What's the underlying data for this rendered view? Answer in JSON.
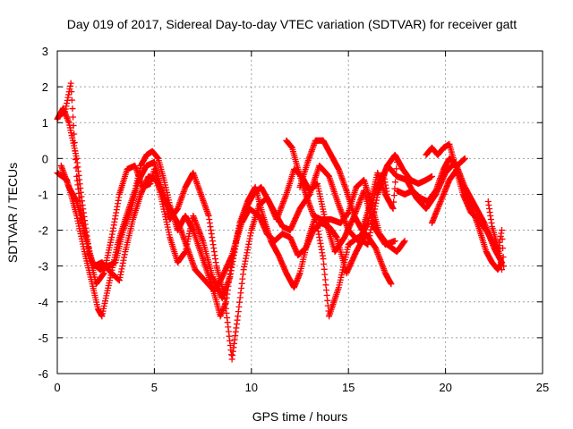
{
  "chart_data": {
    "type": "scatter",
    "title": "Day 019 of 2017, Sidereal Day-to-day VTEC variation (SDTVAR) for receiver gatt",
    "xlabel": "GPS time / hours",
    "ylabel": "SDTVAR / TECUs",
    "xlim": [
      0,
      25
    ],
    "ylim": [
      -6,
      3
    ],
    "xticks": [
      0,
      5,
      10,
      15,
      20,
      25
    ],
    "yticks": [
      -6,
      -5,
      -4,
      -3,
      -2,
      -1,
      0,
      1,
      2,
      3
    ],
    "grid": true,
    "marker": "+",
    "series_color": "#ff0000",
    "tracks": [
      [
        [
          0.0,
          1.1
        ],
        [
          0.3,
          1.4
        ],
        [
          0.6,
          1.0
        ],
        [
          1.0,
          0.0
        ],
        [
          1.3,
          -1.3
        ],
        [
          1.7,
          -2.8
        ],
        [
          2.0,
          -3.5
        ],
        [
          2.4,
          -3.2
        ],
        [
          2.8,
          -2.2
        ],
        [
          3.2,
          -1.0
        ],
        [
          3.6,
          -0.3
        ],
        [
          4.0,
          -0.2
        ],
        [
          4.4,
          -0.8
        ],
        [
          4.8,
          -0.7
        ],
        [
          5.0,
          -0.3
        ],
        [
          5.4,
          -1.2
        ],
        [
          5.8,
          -2.2
        ],
        [
          6.2,
          -2.9
        ],
        [
          6.6,
          -2.6
        ],
        [
          7.0,
          -1.6
        ],
        [
          7.5,
          -2.3
        ],
        [
          8.0,
          -3.3
        ],
        [
          8.5,
          -3.9
        ],
        [
          8.9,
          -3.3
        ],
        [
          9.3,
          -2.1
        ],
        [
          9.7,
          -1.4
        ],
        [
          10.1,
          -1.0
        ],
        [
          10.5,
          -0.8
        ],
        [
          10.9,
          -1.2
        ],
        [
          11.3,
          -1.7
        ],
        [
          11.8,
          -1.0
        ],
        [
          12.2,
          -0.3
        ],
        [
          12.6,
          -0.5
        ],
        [
          13.0,
          -0.9
        ],
        [
          13.4,
          -0.7
        ],
        [
          13.8,
          -1.7
        ],
        [
          14.3,
          -2.6
        ],
        [
          14.8,
          -2.2
        ],
        [
          15.3,
          -1.6
        ],
        [
          15.8,
          -0.9
        ],
        [
          16.3,
          -1.9
        ],
        [
          16.9,
          -2.4
        ],
        [
          17.4,
          -2.3
        ]
      ],
      [
        [
          0.0,
          -0.4
        ],
        [
          0.5,
          -0.6
        ],
        [
          1.0,
          -1.6
        ],
        [
          1.4,
          -2.6
        ],
        [
          1.8,
          -3.5
        ],
        [
          2.1,
          -4.2
        ],
        [
          2.3,
          -4.4
        ],
        [
          2.7,
          -3.4
        ],
        [
          3.1,
          -2.4
        ],
        [
          3.5,
          -1.7
        ],
        [
          4.0,
          -0.9
        ],
        [
          4.3,
          -0.2
        ],
        [
          4.6,
          0.1
        ],
        [
          4.9,
          0.2
        ],
        [
          5.2,
          0.0
        ],
        [
          5.5,
          -0.6
        ],
        [
          5.8,
          -1.3
        ],
        [
          6.2,
          -2.0
        ],
        [
          6.6,
          -1.6
        ],
        [
          7.0,
          -2.0
        ],
        [
          7.5,
          -2.8
        ],
        [
          8.0,
          -3.6
        ],
        [
          8.4,
          -4.4
        ],
        [
          8.7,
          -4.0
        ],
        [
          9.0,
          -2.8
        ],
        [
          9.4,
          -1.8
        ],
        [
          9.8,
          -1.2
        ],
        [
          10.2,
          -0.8
        ],
        [
          10.6,
          -1.6
        ],
        [
          11.0,
          -2.3
        ],
        [
          11.4,
          -2.7
        ],
        [
          11.8,
          -3.2
        ],
        [
          12.2,
          -3.6
        ],
        [
          12.5,
          -3.2
        ],
        [
          12.9,
          -2.3
        ],
        [
          13.3,
          -1.6
        ],
        [
          13.7,
          -2.8
        ],
        [
          14.0,
          -4.4
        ],
        [
          14.5,
          -3.6
        ],
        [
          15.0,
          -2.4
        ],
        [
          15.5,
          -2.2
        ],
        [
          16.0,
          -2.4
        ],
        [
          16.5,
          -1.0
        ],
        [
          17.0,
          -0.2
        ],
        [
          17.5,
          -0.5
        ],
        [
          18.0,
          -0.6
        ],
        [
          18.5,
          -1.1
        ],
        [
          19.0,
          -1.4
        ],
        [
          19.5,
          -1.0
        ],
        [
          20.0,
          -0.4
        ],
        [
          20.5,
          -0.1
        ],
        [
          21.0,
          -0.8
        ],
        [
          21.5,
          -1.3
        ],
        [
          22.0,
          -1.8
        ],
        [
          22.5,
          -2.5
        ],
        [
          22.9,
          -2.9
        ]
      ],
      [
        [
          0.1,
          1.2
        ],
        [
          0.4,
          1.3
        ],
        [
          0.7,
          2.1
        ],
        [
          1.0,
          -0.5
        ],
        [
          1.3,
          -1.8
        ],
        [
          1.6,
          -2.6
        ],
        [
          1.9,
          -3.0
        ],
        [
          2.3,
          -2.9
        ],
        [
          2.8,
          -3.2
        ],
        [
          3.2,
          -3.4
        ],
        [
          3.5,
          -2.6
        ],
        [
          3.9,
          -1.7
        ],
        [
          4.3,
          -1.0
        ],
        [
          4.7,
          -0.5
        ],
        [
          5.1,
          -0.6
        ],
        [
          5.5,
          -1.1
        ],
        [
          5.9,
          -1.5
        ],
        [
          6.3,
          -1.9
        ],
        [
          6.7,
          -2.5
        ],
        [
          7.1,
          -3.1
        ],
        [
          7.6,
          -3.4
        ],
        [
          8.1,
          -3.7
        ],
        [
          8.5,
          -3.3
        ],
        [
          9.0,
          -2.7
        ],
        [
          9.5,
          -1.8
        ],
        [
          9.9,
          -1.4
        ],
        [
          10.4,
          -1.6
        ],
        [
          10.8,
          -2.1
        ],
        [
          11.2,
          -2.3
        ],
        [
          11.6,
          -2.1
        ],
        [
          12.0,
          -2.2
        ],
        [
          12.4,
          -2.7
        ],
        [
          12.8,
          -2.5
        ],
        [
          13.2,
          -2.0
        ],
        [
          13.6,
          -1.8
        ],
        [
          14.0,
          -1.9
        ],
        [
          14.4,
          -2.2
        ],
        [
          14.9,
          -3.2
        ],
        [
          15.4,
          -2.6
        ],
        [
          15.9,
          -2.1
        ],
        [
          16.4,
          -2.5
        ],
        [
          16.9,
          -3.2
        ],
        [
          17.2,
          -3.5
        ]
      ],
      [
        [
          0.2,
          -0.2
        ],
        [
          0.6,
          -0.8
        ],
        [
          1.0,
          -1.2
        ],
        [
          1.4,
          -2.0
        ],
        [
          1.8,
          -2.9
        ],
        [
          2.2,
          -3.1
        ],
        [
          2.6,
          -3.0
        ],
        [
          3.0,
          -2.9
        ],
        [
          3.4,
          -2.0
        ],
        [
          3.8,
          -1.4
        ],
        [
          4.2,
          -0.6
        ],
        [
          4.6,
          -0.2
        ],
        [
          5.0,
          -0.1
        ],
        [
          5.4,
          -0.9
        ],
        [
          5.8,
          -1.7
        ],
        [
          6.2,
          -1.4
        ],
        [
          6.6,
          -0.8
        ],
        [
          7.0,
          -0.4
        ],
        [
          7.4,
          -1.0
        ],
        [
          7.8,
          -1.6
        ],
        [
          8.2,
          -3.0
        ],
        [
          8.6,
          -3.8
        ],
        [
          9.0,
          -5.6
        ],
        [
          9.3,
          -4.4
        ],
        [
          9.6,
          -3.1
        ],
        [
          10.0,
          -2.0
        ],
        [
          10.4,
          -1.3
        ],
        [
          10.8,
          -1.1
        ],
        [
          11.2,
          -1.5
        ],
        [
          11.6,
          -1.9
        ],
        [
          12.0,
          -2.0
        ],
        [
          12.5,
          -1.4
        ],
        [
          13.0,
          -1.0
        ],
        [
          13.5,
          -0.2
        ],
        [
          14.0,
          -0.5
        ],
        [
          14.5,
          -1.3
        ],
        [
          15.0,
          -2.0
        ],
        [
          15.5,
          -2.3
        ],
        [
          16.0,
          -1.8
        ],
        [
          16.4,
          -0.9
        ],
        [
          16.8,
          -0.4
        ],
        [
          17.0,
          -1.0
        ]
      ],
      [
        [
          11.8,
          0.5
        ],
        [
          12.1,
          0.3
        ],
        [
          12.4,
          -0.3
        ],
        [
          12.8,
          -1.0
        ],
        [
          13.2,
          -1.6
        ],
        [
          13.6,
          -1.7
        ],
        [
          14.1,
          -1.7
        ],
        [
          14.6,
          -1.8
        ],
        [
          15.0,
          -1.5
        ],
        [
          15.4,
          -0.8
        ],
        [
          15.8,
          -0.6
        ],
        [
          16.2,
          -1.3
        ],
        [
          16.6,
          -2.1
        ],
        [
          17.0,
          -2.4
        ],
        [
          17.5,
          -2.6
        ],
        [
          17.9,
          -2.3
        ]
      ],
      [
        [
          12.5,
          -0.8
        ],
        [
          12.9,
          -0.1
        ],
        [
          13.3,
          0.5
        ],
        [
          13.7,
          0.5
        ],
        [
          14.1,
          0.1
        ],
        [
          14.5,
          -0.3
        ],
        [
          14.9,
          -0.9
        ],
        [
          15.3,
          -1.6
        ],
        [
          15.7,
          -2.0
        ],
        [
          16.1,
          -1.3
        ],
        [
          16.5,
          -0.4
        ],
        [
          16.9,
          -1.0
        ],
        [
          17.3,
          -1.4
        ],
        [
          17.5,
          -0.1
        ]
      ],
      [
        [
          16.7,
          -0.6
        ],
        [
          17.0,
          -0.2
        ],
        [
          17.4,
          0.1
        ],
        [
          17.8,
          -0.3
        ],
        [
          18.2,
          -0.6
        ],
        [
          18.6,
          -0.7
        ],
        [
          19.0,
          -0.6
        ],
        [
          19.3,
          -0.5
        ]
      ],
      [
        [
          17.5,
          -0.9
        ],
        [
          17.9,
          -1.0
        ],
        [
          18.3,
          -0.9
        ],
        [
          18.7,
          -1.1
        ],
        [
          19.1,
          -1.2
        ],
        [
          19.5,
          -0.9
        ],
        [
          19.9,
          -0.3
        ],
        [
          20.2,
          0.0
        ],
        [
          20.6,
          -0.2
        ],
        [
          21.0,
          0.0
        ]
      ],
      [
        [
          19.0,
          0.1
        ],
        [
          19.3,
          0.3
        ],
        [
          19.6,
          0.1
        ],
        [
          19.9,
          0.3
        ],
        [
          20.2,
          0.4
        ],
        [
          20.5,
          -0.2
        ],
        [
          20.9,
          -1.0
        ],
        [
          21.3,
          -1.5
        ],
        [
          21.7,
          -1.7
        ],
        [
          22.1,
          -2.0
        ],
        [
          22.5,
          -2.4
        ],
        [
          22.7,
          -2.6
        ],
        [
          22.9,
          -2.0
        ],
        [
          23.0,
          -3.0
        ]
      ],
      [
        [
          19.3,
          -1.8
        ],
        [
          19.6,
          -1.4
        ],
        [
          19.9,
          -1.0
        ],
        [
          20.2,
          -0.6
        ],
        [
          20.6,
          -0.3
        ],
        [
          21.0,
          -0.9
        ],
        [
          21.3,
          -1.3
        ],
        [
          21.7,
          -1.9
        ],
        [
          22.1,
          -2.6
        ],
        [
          22.4,
          -2.9
        ],
        [
          22.7,
          -3.1
        ],
        [
          22.9,
          -2.9
        ]
      ],
      [
        [
          22.2,
          -1.2
        ],
        [
          22.4,
          -1.9
        ],
        [
          22.6,
          -2.3
        ],
        [
          22.8,
          -2.7
        ],
        [
          22.9,
          -3.1
        ]
      ]
    ]
  }
}
